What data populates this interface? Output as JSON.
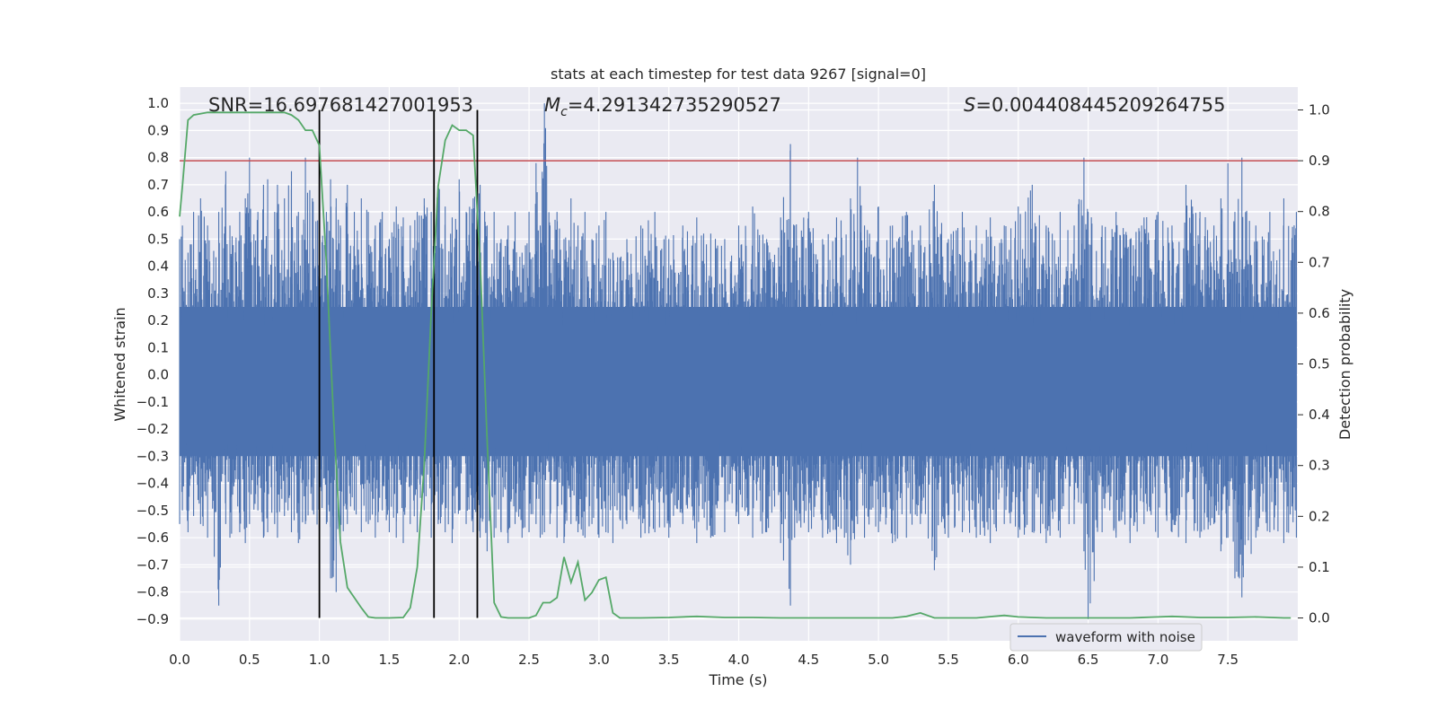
{
  "chart_data": {
    "type": "line",
    "title": "stats at each timestep for test data 9267 [signal=0]",
    "xlabel": "Time (s)",
    "ylabel": "Whitened strain",
    "y2label": "Detection probability",
    "xlim": [
      0.0,
      8.0
    ],
    "ylim": [
      -0.98,
      1.06
    ],
    "y2lim": [
      -0.045,
      1.045
    ],
    "xticks": [
      "0.0",
      "0.5",
      "1.0",
      "1.5",
      "2.0",
      "2.5",
      "3.0",
      "3.5",
      "4.0",
      "4.5",
      "5.0",
      "5.5",
      "6.0",
      "6.5",
      "7.0",
      "7.5"
    ],
    "yticks": [
      "-0.9",
      "-0.8",
      "-0.7",
      "-0.6",
      "-0.5",
      "-0.4",
      "-0.3",
      "-0.2",
      "-0.1",
      "0.0",
      "0.1",
      "0.2",
      "0.3",
      "0.4",
      "0.5",
      "0.6",
      "0.7",
      "0.8",
      "0.9",
      "1.0"
    ],
    "y2ticks": [
      "0.0",
      "0.1",
      "0.2",
      "0.3",
      "0.4",
      "0.5",
      "0.6",
      "0.7",
      "0.8",
      "0.9",
      "1.0"
    ],
    "grid": true,
    "legend": {
      "placement": "lower-center",
      "entries": [
        "waveform with noise"
      ]
    },
    "annotations": {
      "snr": "SNR=16.697681427001953",
      "mc_symbol": "M",
      "mc_sub": "c",
      "mc_value": "=4.291342735290527",
      "s_symbol": "S",
      "s_value": "=0.004408445209264755"
    },
    "vertical_lines_x": [
      1.0,
      1.82,
      2.13
    ],
    "threshold_probability": 0.9,
    "series": [
      {
        "name": "waveform with noise",
        "color": "#4c72b0",
        "axis": "left",
        "spikes_envelope": {
          "x": [
            0.0,
            0.02,
            0.06,
            0.1,
            0.15,
            0.2,
            0.28,
            0.33,
            0.36,
            0.43,
            0.47,
            0.5,
            0.56,
            0.6,
            0.63,
            0.68,
            0.7,
            0.75,
            0.8,
            0.85,
            0.9,
            0.95,
            1.0,
            1.05,
            1.08,
            1.12,
            1.15,
            1.2,
            1.25,
            1.3,
            1.35,
            1.4,
            1.45,
            1.5,
            1.55,
            1.6,
            1.65,
            1.7,
            1.75,
            1.8,
            1.85,
            1.9,
            1.95,
            2.0,
            2.05,
            2.1,
            2.15,
            2.2,
            2.25,
            2.3,
            2.35,
            2.4,
            2.45,
            2.5,
            2.55,
            2.58,
            2.61,
            2.65,
            2.7,
            2.75,
            2.8,
            2.85,
            2.9,
            2.95,
            3.0,
            3.05,
            3.1,
            3.2,
            3.3,
            3.4,
            3.5,
            3.6,
            3.7,
            3.8,
            3.9,
            4.0,
            4.1,
            4.2,
            4.3,
            4.37,
            4.4,
            4.5,
            4.6,
            4.7,
            4.8,
            4.85,
            4.9,
            5.0,
            5.1,
            5.2,
            5.3,
            5.4,
            5.5,
            5.6,
            5.7,
            5.8,
            5.9,
            6.0,
            6.1,
            6.2,
            6.3,
            6.4,
            6.47,
            6.5,
            6.6,
            6.7,
            6.8,
            6.9,
            7.0,
            7.1,
            7.2,
            7.3,
            7.4,
            7.45,
            7.5,
            7.55,
            7.6,
            7.7,
            7.8,
            7.9,
            7.99
          ],
          "max": [
            0.5,
            0.55,
            0.45,
            0.6,
            0.65,
            0.55,
            0.6,
            0.75,
            0.55,
            0.6,
            0.65,
            0.8,
            0.6,
            0.7,
            0.72,
            0.6,
            0.7,
            0.65,
            0.75,
            0.6,
            0.8,
            0.65,
            0.55,
            0.6,
            0.72,
            0.65,
            0.55,
            0.7,
            0.6,
            0.65,
            0.6,
            0.55,
            0.6,
            0.5,
            0.62,
            0.58,
            0.55,
            0.6,
            0.65,
            0.6,
            0.7,
            0.62,
            0.58,
            0.72,
            0.6,
            0.65,
            0.7,
            0.55,
            0.6,
            0.5,
            0.55,
            0.6,
            0.45,
            0.6,
            0.78,
            0.55,
            1.0,
            0.55,
            0.6,
            0.5,
            0.65,
            0.55,
            0.6,
            0.5,
            0.55,
            0.6,
            0.45,
            0.5,
            0.55,
            0.6,
            0.5,
            0.55,
            0.58,
            0.52,
            0.5,
            0.55,
            0.62,
            0.5,
            0.58,
            0.85,
            0.55,
            0.6,
            0.5,
            0.58,
            0.65,
            0.8,
            0.55,
            0.62,
            0.55,
            0.6,
            0.55,
            0.7,
            0.5,
            0.6,
            0.55,
            0.58,
            0.55,
            0.62,
            0.7,
            0.55,
            0.6,
            0.55,
            0.8,
            0.6,
            0.55,
            0.6,
            0.5,
            0.58,
            0.6,
            0.55,
            0.7,
            0.6,
            0.55,
            0.65,
            0.78,
            0.6,
            0.8,
            0.55,
            0.6,
            0.65,
            0.6,
            0.55
          ],
          "min": [
            -0.55,
            -0.5,
            -0.58,
            -0.52,
            -0.55,
            -0.6,
            -0.85,
            -0.55,
            -0.6,
            -0.58,
            -0.62,
            -0.55,
            -0.5,
            -0.6,
            -0.58,
            -0.55,
            -0.6,
            -0.52,
            -0.58,
            -0.62,
            -0.55,
            -0.5,
            -0.58,
            -0.55,
            -0.75,
            -0.8,
            -0.6,
            -0.55,
            -0.5,
            -0.58,
            -0.55,
            -0.6,
            -0.5,
            -0.58,
            -0.6,
            -0.62,
            -0.55,
            -0.58,
            -0.5,
            -0.6,
            -0.55,
            -0.58,
            -0.62,
            -0.5,
            -0.55,
            -0.58,
            -0.6,
            -0.65,
            -0.6,
            -0.58,
            -0.62,
            -0.55,
            -0.6,
            -0.58,
            -0.55,
            -0.6,
            -0.58,
            -0.55,
            -0.6,
            -0.62,
            -0.55,
            -0.58,
            -0.6,
            -0.55,
            -0.6,
            -0.58,
            -0.62,
            -0.55,
            -0.6,
            -0.58,
            -0.6,
            -0.55,
            -0.62,
            -0.6,
            -0.58,
            -0.55,
            -0.6,
            -0.58,
            -0.62,
            -0.85,
            -0.6,
            -0.58,
            -0.6,
            -0.62,
            -0.7,
            -0.55,
            -0.6,
            -0.58,
            -0.62,
            -0.6,
            -0.55,
            -0.72,
            -0.6,
            -0.58,
            -0.6,
            -0.62,
            -0.55,
            -0.6,
            -0.58,
            -0.62,
            -0.6,
            -0.55,
            -0.65,
            -0.9,
            -0.58,
            -0.6,
            -0.62,
            -0.55,
            -0.6,
            -0.58,
            -0.62,
            -0.6,
            -0.55,
            -0.65,
            -0.6,
            -0.75,
            -0.82,
            -0.6,
            -0.58,
            -0.62,
            -0.6,
            -0.55
          ]
        }
      },
      {
        "name": "",
        "color": "#55a868",
        "axis": "right",
        "x": [
          0.0,
          0.02,
          0.06,
          0.1,
          0.2,
          0.4,
          0.6,
          0.75,
          0.8,
          0.85,
          0.9,
          0.95,
          1.0,
          1.05,
          1.1,
          1.15,
          1.2,
          1.25,
          1.3,
          1.35,
          1.4,
          1.5,
          1.6,
          1.65,
          1.7,
          1.75,
          1.8,
          1.85,
          1.9,
          1.95,
          2.0,
          2.05,
          2.1,
          2.15,
          2.2,
          2.25,
          2.3,
          2.35,
          2.4,
          2.5,
          2.55,
          2.6,
          2.65,
          2.7,
          2.75,
          2.8,
          2.85,
          2.9,
          2.95,
          3.0,
          3.05,
          3.1,
          3.15,
          3.2,
          3.3,
          3.5,
          3.7,
          3.9,
          4.1,
          4.3,
          4.5,
          4.7,
          4.9,
          5.1,
          5.2,
          5.3,
          5.4,
          5.5,
          5.7,
          5.9,
          6.0,
          6.2,
          6.4,
          6.6,
          6.8,
          7.0,
          7.1,
          7.3,
          7.5,
          7.7,
          7.9,
          7.95
        ],
        "y": [
          0.79,
          0.85,
          0.98,
          0.99,
          0.995,
          0.995,
          0.995,
          0.995,
          0.99,
          0.98,
          0.96,
          0.96,
          0.93,
          0.7,
          0.4,
          0.15,
          0.06,
          0.04,
          0.02,
          0.002,
          0.0,
          0.0,
          0.001,
          0.02,
          0.1,
          0.3,
          0.6,
          0.85,
          0.94,
          0.97,
          0.96,
          0.96,
          0.95,
          0.7,
          0.35,
          0.03,
          0.002,
          0.0,
          0.0,
          0.0,
          0.005,
          0.03,
          0.03,
          0.04,
          0.12,
          0.07,
          0.11,
          0.035,
          0.05,
          0.075,
          0.08,
          0.01,
          0.0,
          0.0,
          0.0,
          0.001,
          0.003,
          0.001,
          0.001,
          0.0,
          0.0,
          0.0,
          0.0,
          0.0,
          0.003,
          0.01,
          0.0,
          0.0,
          0.0,
          0.005,
          0.002,
          0.0,
          0.0,
          0.0,
          0.0,
          0.002,
          0.003,
          0.001,
          0.001,
          0.002,
          0.0,
          0.0
        ]
      }
    ]
  }
}
